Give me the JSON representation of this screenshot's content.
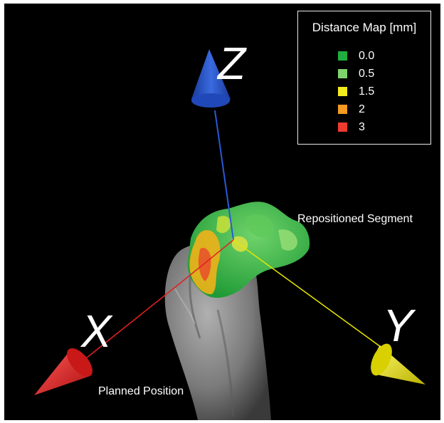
{
  "legend": {
    "title": "Distance Map [mm]",
    "items": [
      {
        "label": "0.0",
        "color": "#1fae3f"
      },
      {
        "label": "0.5",
        "color": "#7ed36c"
      },
      {
        "label": "1.5",
        "color": "#f2ea1c"
      },
      {
        "label": "2",
        "color": "#f39a21"
      },
      {
        "label": "3",
        "color": "#ee3b2f"
      }
    ]
  },
  "labels": {
    "repositioned_segment": "Repositioned Segment",
    "planned_position": "Planned Position"
  },
  "axes": {
    "x": {
      "label": "X",
      "color": "#e02020"
    },
    "y": {
      "label": "Y",
      "color": "#e6e600"
    },
    "z": {
      "label": "Z",
      "color": "#2050c8"
    }
  },
  "colors": {
    "background": "#000000",
    "bone": "#8a8a8a"
  }
}
